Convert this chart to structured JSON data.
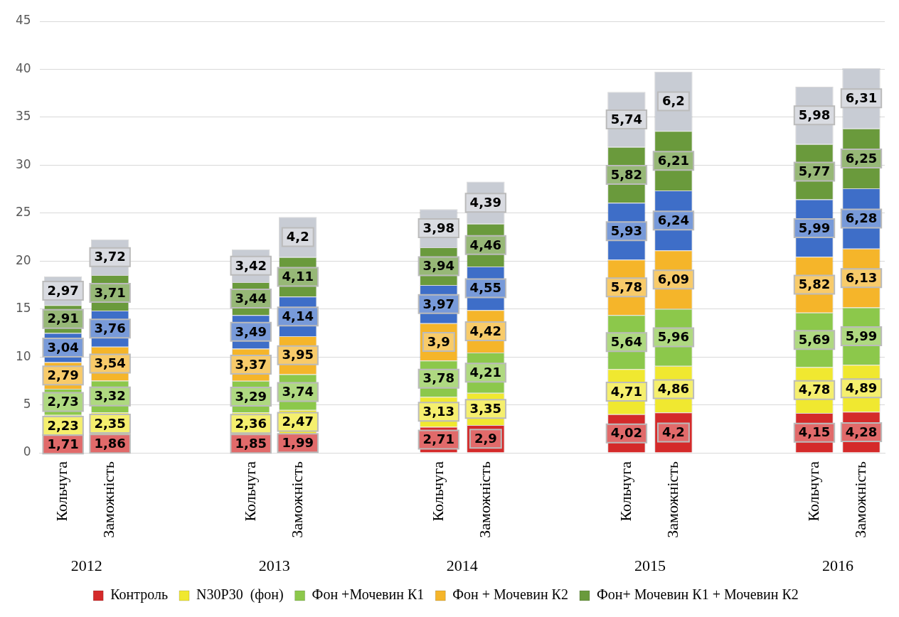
{
  "chart_data": {
    "type": "bar",
    "stacked": true,
    "categories": [
      "Кольчуга",
      "Заможність",
      null,
      null,
      "Кольчуга",
      "Заможність",
      null,
      null,
      "Кольчуга",
      "Заможність",
      null,
      null,
      "Кольчуга",
      "Заможність",
      null,
      null,
      "Кольчуга",
      "Заможність"
    ],
    "ylim": [
      0,
      45
    ],
    "yticks": [
      0,
      5,
      10,
      15,
      20,
      25,
      30,
      35,
      40,
      45
    ],
    "grid": "y",
    "legend": "bottom",
    "annotations": [
      "2012",
      "2013",
      "2014",
      "2015",
      "2016"
    ],
    "series": [
      {
        "name": "Контроль",
        "color": "#d42a2a",
        "values": [
          1.71,
          1.86,
          null,
          null,
          1.85,
          1.99,
          null,
          null,
          2.71,
          2.9,
          null,
          null,
          4.02,
          4.2,
          null,
          null,
          4.15,
          4.28
        ],
        "value_labels": [
          "1,71",
          "1,86",
          null,
          null,
          "1,85",
          "1,99",
          null,
          null,
          "2,71",
          "2,9",
          null,
          null,
          "4,02",
          "4,2",
          null,
          null,
          "4,15",
          "4,28"
        ]
      },
      {
        "name": "N30P30  (фон)",
        "color": "#f0e830",
        "values": [
          2.23,
          2.35,
          null,
          null,
          2.36,
          2.47,
          null,
          null,
          3.13,
          3.35,
          null,
          null,
          4.71,
          4.86,
          null,
          null,
          4.78,
          4.89
        ],
        "value_labels": [
          "2,23",
          "2,35",
          null,
          null,
          "2,36",
          "2,47",
          null,
          null,
          "3,13",
          "3,35",
          null,
          null,
          "4,71",
          "4,86",
          null,
          null,
          "4,78",
          "4,89"
        ]
      },
      {
        "name": "Фон +Мочевин К1",
        "color": "#8cc84b",
        "values": [
          2.73,
          3.32,
          null,
          null,
          3.29,
          3.74,
          null,
          null,
          3.78,
          4.21,
          null,
          null,
          5.64,
          5.96,
          null,
          null,
          5.69,
          5.99
        ],
        "value_labels": [
          "2,73",
          "3,32",
          null,
          null,
          "3,29",
          "3,74",
          null,
          null,
          "3,78",
          "4,21",
          null,
          null,
          "5,64",
          "5,96",
          null,
          null,
          "5,69",
          "5,99"
        ]
      },
      {
        "name": "Фон + Мочевин К2",
        "color": "#f5b52a",
        "values": [
          2.79,
          3.54,
          null,
          null,
          3.37,
          3.95,
          null,
          null,
          3.9,
          4.42,
          null,
          null,
          5.78,
          6.09,
          null,
          null,
          5.82,
          6.13
        ],
        "value_labels": [
          "2,79",
          "3,54",
          null,
          null,
          "3,37",
          "3,95",
          null,
          null,
          "3,9",
          "4,42",
          null,
          null,
          "5,78",
          "6,09",
          null,
          null,
          "5,82",
          "6,13"
        ]
      },
      {
        "color": "#3e6ec8",
        "values": [
          3.04,
          3.76,
          null,
          null,
          3.49,
          4.14,
          null,
          null,
          3.97,
          4.55,
          null,
          null,
          5.93,
          6.24,
          null,
          null,
          5.99,
          6.28
        ],
        "value_labels": [
          "3,04",
          "3,76",
          null,
          null,
          "3,49",
          "4,14",
          null,
          null,
          "3,97",
          "4,55",
          null,
          null,
          "5,93",
          "6,24",
          null,
          null,
          "5,99",
          "6,28"
        ]
      },
      {
        "name": "Фон+ Мочевин К1 + Мочевин К2",
        "color": "#6a9a3c",
        "values": [
          2.91,
          3.71,
          null,
          null,
          3.44,
          4.11,
          null,
          null,
          3.94,
          4.46,
          null,
          null,
          5.82,
          6.21,
          null,
          null,
          5.77,
          6.25
        ],
        "value_labels": [
          "2,91",
          "3,71",
          null,
          null,
          "3,44",
          "4,11",
          null,
          null,
          "3,94",
          "4,46",
          null,
          null,
          "5,82",
          "6,21",
          null,
          null,
          "5,77",
          "6,25"
        ]
      },
      {
        "color": "#c8ccd4",
        "values": [
          2.97,
          3.72,
          null,
          null,
          3.42,
          4.2,
          null,
          null,
          3.98,
          4.39,
          null,
          null,
          5.74,
          6.2,
          null,
          null,
          5.98,
          6.31
        ],
        "value_labels": [
          "2,97",
          "3,72",
          null,
          null,
          "3,42",
          "4,2",
          null,
          null,
          "3,98",
          "4,39",
          null,
          null,
          "5,74",
          "6,2",
          null,
          null,
          "5,98",
          "6,31"
        ]
      }
    ]
  }
}
